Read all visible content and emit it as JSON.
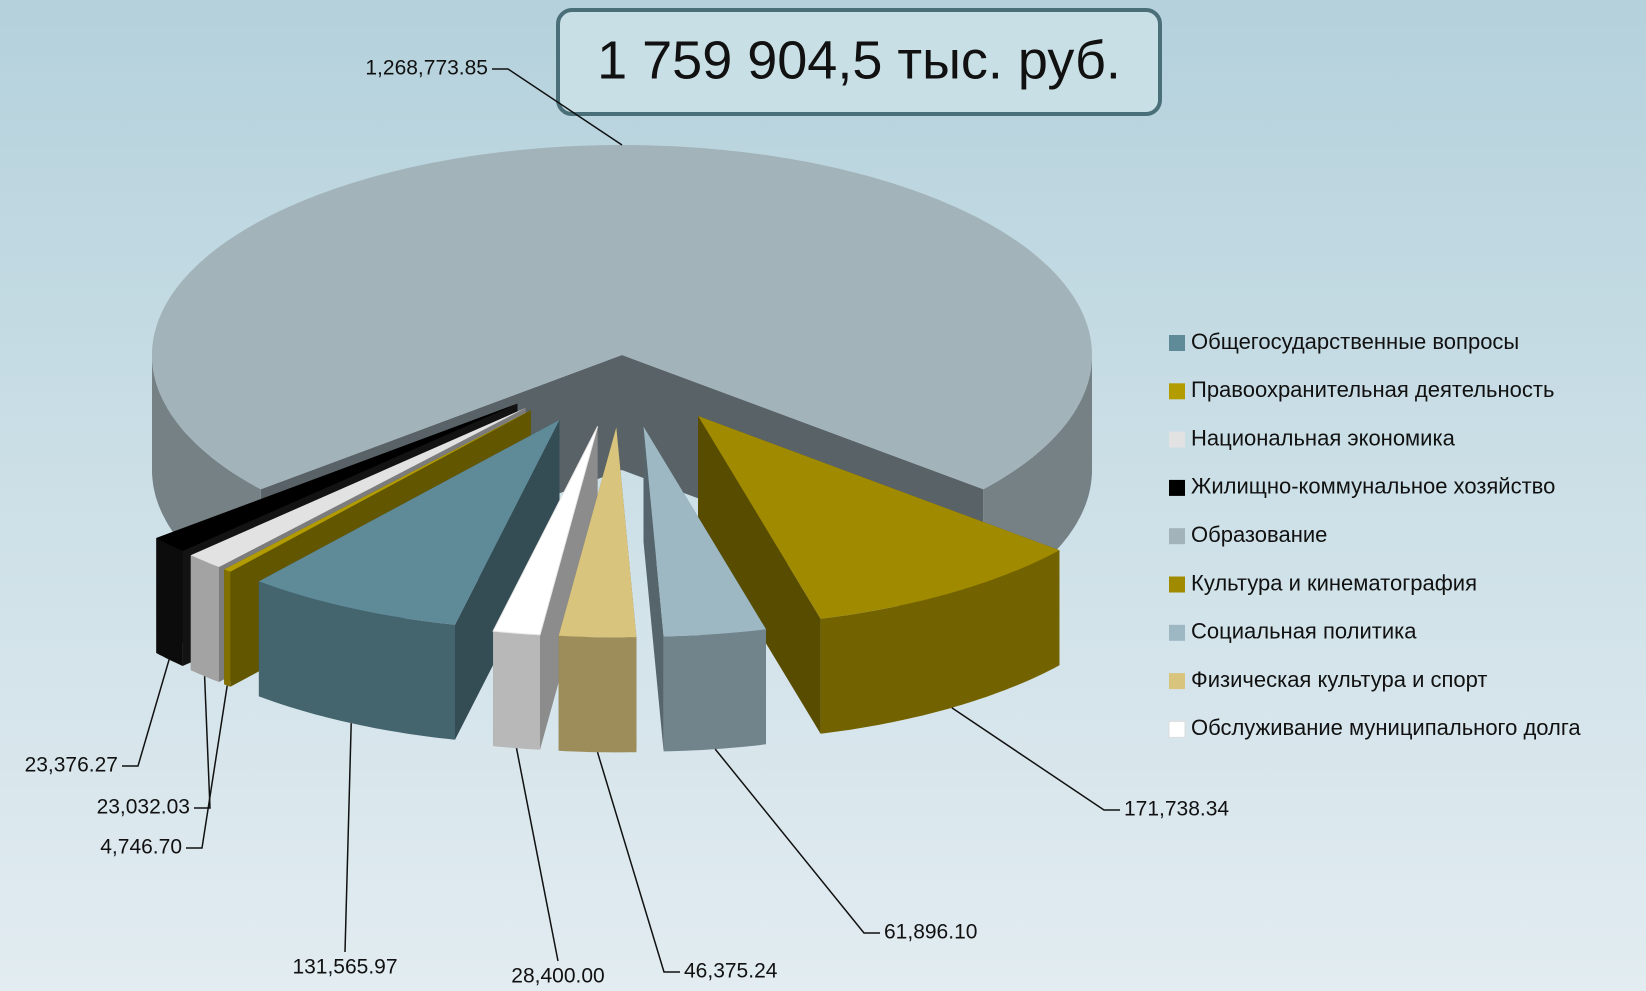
{
  "chart_data": {
    "type": "pie3d",
    "title": "1 759 904,5 тыс. руб.",
    "categories": [
      "Общегосударственные вопросы",
      "Правоохранительная деятельность",
      "Национальная экономика",
      "Жилищно-коммунальное хозяйство",
      "Образование",
      "Культура и кинематография",
      "Социальная политика",
      "Физическая культура и спорт",
      "Обслуживание муниципального долга"
    ],
    "values": [
      131565.97,
      4746.7,
      23032.03,
      23376.27,
      1268773.85,
      171738.34,
      61896.1,
      46375.24,
      28400.0
    ],
    "value_labels": [
      "131,565.97",
      "4,746.70",
      "23,032.03",
      "23,376.27",
      "1,268,773.85",
      "171,738.34",
      "61,896.10",
      "46,375.24",
      "28,400.00"
    ],
    "colors": [
      "#5f8b99",
      "#b39c00",
      "#e2e2e2",
      "#000000",
      "#a2b3b9",
      "#a08a00",
      "#9db8c3",
      "#d9c47e",
      "#ffffff"
    ],
    "legend": "right"
  }
}
